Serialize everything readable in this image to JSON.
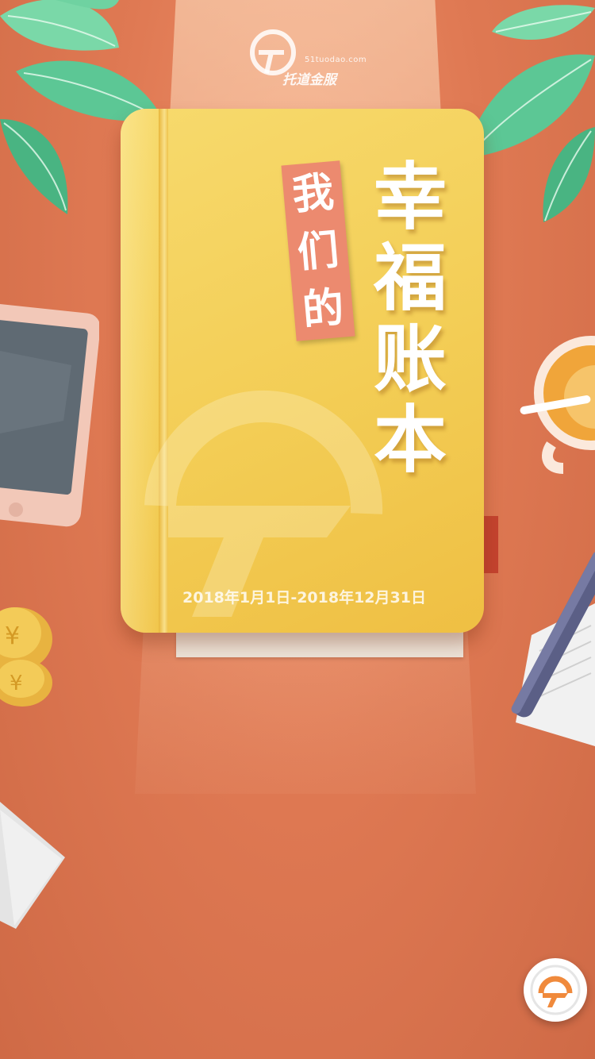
{
  "logo": {
    "subtitle": "51tuodao.com",
    "name": "托道金服"
  },
  "book": {
    "tag": [
      "我",
      "们",
      "的"
    ],
    "title": [
      "幸",
      "福",
      "账",
      "本"
    ],
    "date_range": "2018年1月1日-2018年12月31日"
  },
  "float_button": {
    "icon": "tuodao-logo-icon"
  },
  "colors": {
    "background": "#df7953",
    "book": "#f3cd55",
    "tag": "#ec8a6f",
    "accent": "#f08a3c"
  }
}
